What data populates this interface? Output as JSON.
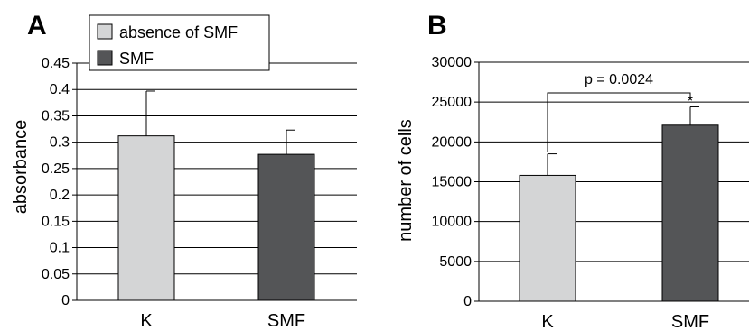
{
  "panels": {
    "a": {
      "letter": "A"
    },
    "b": {
      "letter": "B"
    }
  },
  "legend": {
    "items": [
      {
        "label": "absence of SMF",
        "color": "#d4d5d6"
      },
      {
        "label": "SMF",
        "color": "#545557"
      }
    ]
  },
  "chart_data": [
    {
      "type": "bar",
      "panel": "A",
      "categories": [
        "K",
        "SMF"
      ],
      "values": [
        0.312,
        0.277
      ],
      "errors": [
        0.085,
        0.046
      ],
      "colors": [
        "#d4d5d6",
        "#545557"
      ],
      "ylabel": "absorbance",
      "ylim": [
        0,
        0.45
      ],
      "yticks": [
        "0",
        "0.05",
        "0.1",
        "0.15",
        "0.2",
        "0.25",
        "0.3",
        "0.35",
        "0.4",
        "0.45"
      ],
      "grid": true
    },
    {
      "type": "bar",
      "panel": "B",
      "categories": [
        "K",
        "SMF"
      ],
      "values": [
        15800,
        22100
      ],
      "errors": [
        2700,
        2300
      ],
      "colors": [
        "#d4d5d6",
        "#545557"
      ],
      "ylabel": "number of cells",
      "ylim": [
        0,
        30000
      ],
      "yticks": [
        "0",
        "5000",
        "10000",
        "15000",
        "20000",
        "25000",
        "30000"
      ],
      "grid": true,
      "annotation": {
        "text": "p = 0.0024",
        "star": "*"
      }
    }
  ]
}
